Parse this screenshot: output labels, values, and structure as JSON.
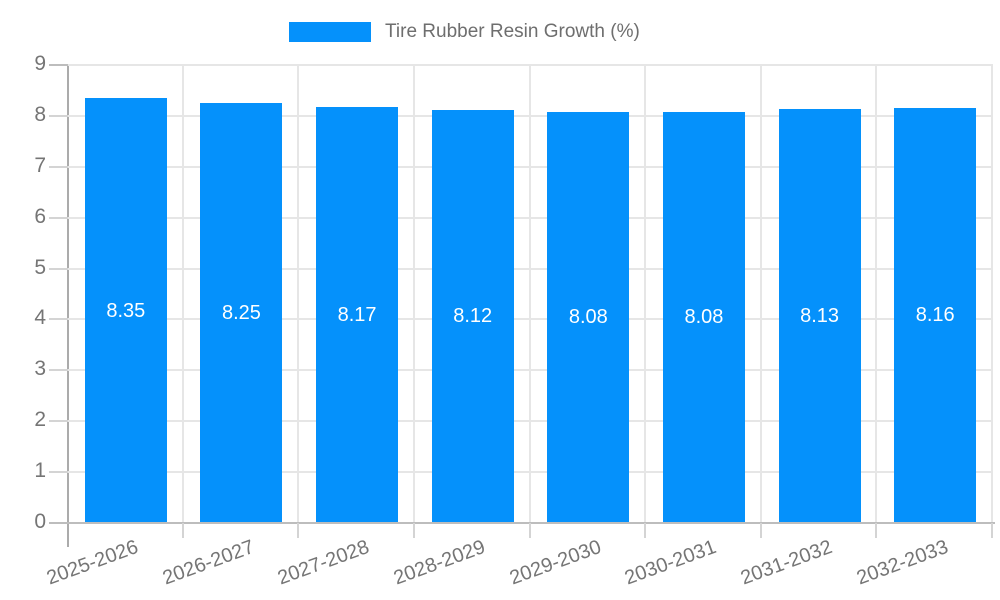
{
  "chart_data": {
    "type": "bar",
    "title": "",
    "legend": {
      "label": "Tire Rubber Resin Growth (%)"
    },
    "categories": [
      "2025-2026",
      "2026-2027",
      "2027-2028",
      "2028-2029",
      "2029-2030",
      "2030-2031",
      "2031-2032",
      "2032-2033"
    ],
    "values": [
      8.35,
      8.25,
      8.17,
      8.12,
      8.08,
      8.08,
      8.13,
      8.16
    ],
    "value_labels": [
      "8.35",
      "8.25",
      "8.17",
      "8.12",
      "8.08",
      "8.08",
      "8.13",
      "8.16"
    ],
    "xlabel": "",
    "ylabel": "",
    "ylim": [
      0,
      9
    ],
    "yticks": [
      0,
      1,
      2,
      3,
      4,
      5,
      6,
      7,
      8,
      9
    ],
    "grid": true,
    "legend_position": "top-center",
    "x_label_rotation_deg": -20,
    "colors": {
      "bar": "#0591fb",
      "bar_value_text": "#ffffff",
      "axis_text": "#757575",
      "legend_text": "#6e6e6e",
      "gridline": "#e6e6e6",
      "axis_line": "#ababab",
      "baseline": "#bdbdbd",
      "tick": "#d4d4d4",
      "background": "#ffffff"
    }
  }
}
